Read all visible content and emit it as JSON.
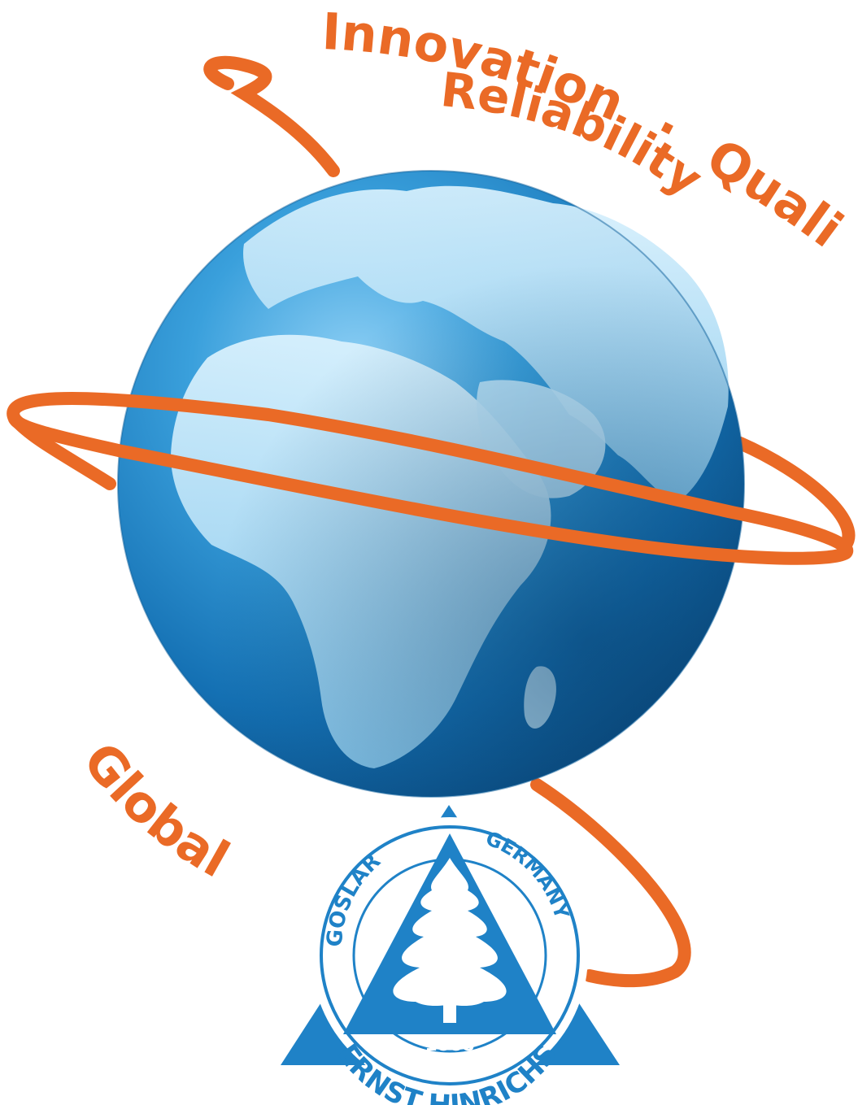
{
  "slogan": {
    "innovation": "Innovation",
    "separator": "·",
    "quality": "Quality",
    "reliability": "Reliability",
    "global": "Global"
  },
  "seal": {
    "city": "GOSLAR",
    "country": "GERMANY",
    "company": "ERNST HINRICHS",
    "year": "1888"
  },
  "colors": {
    "accent_orange": "#ea6a26",
    "brand_blue": "#1f82c7",
    "globe_blue": "#1a78bf"
  },
  "icons": [
    "globe-illustration",
    "orbit-ring",
    "fir-tree-logo"
  ]
}
